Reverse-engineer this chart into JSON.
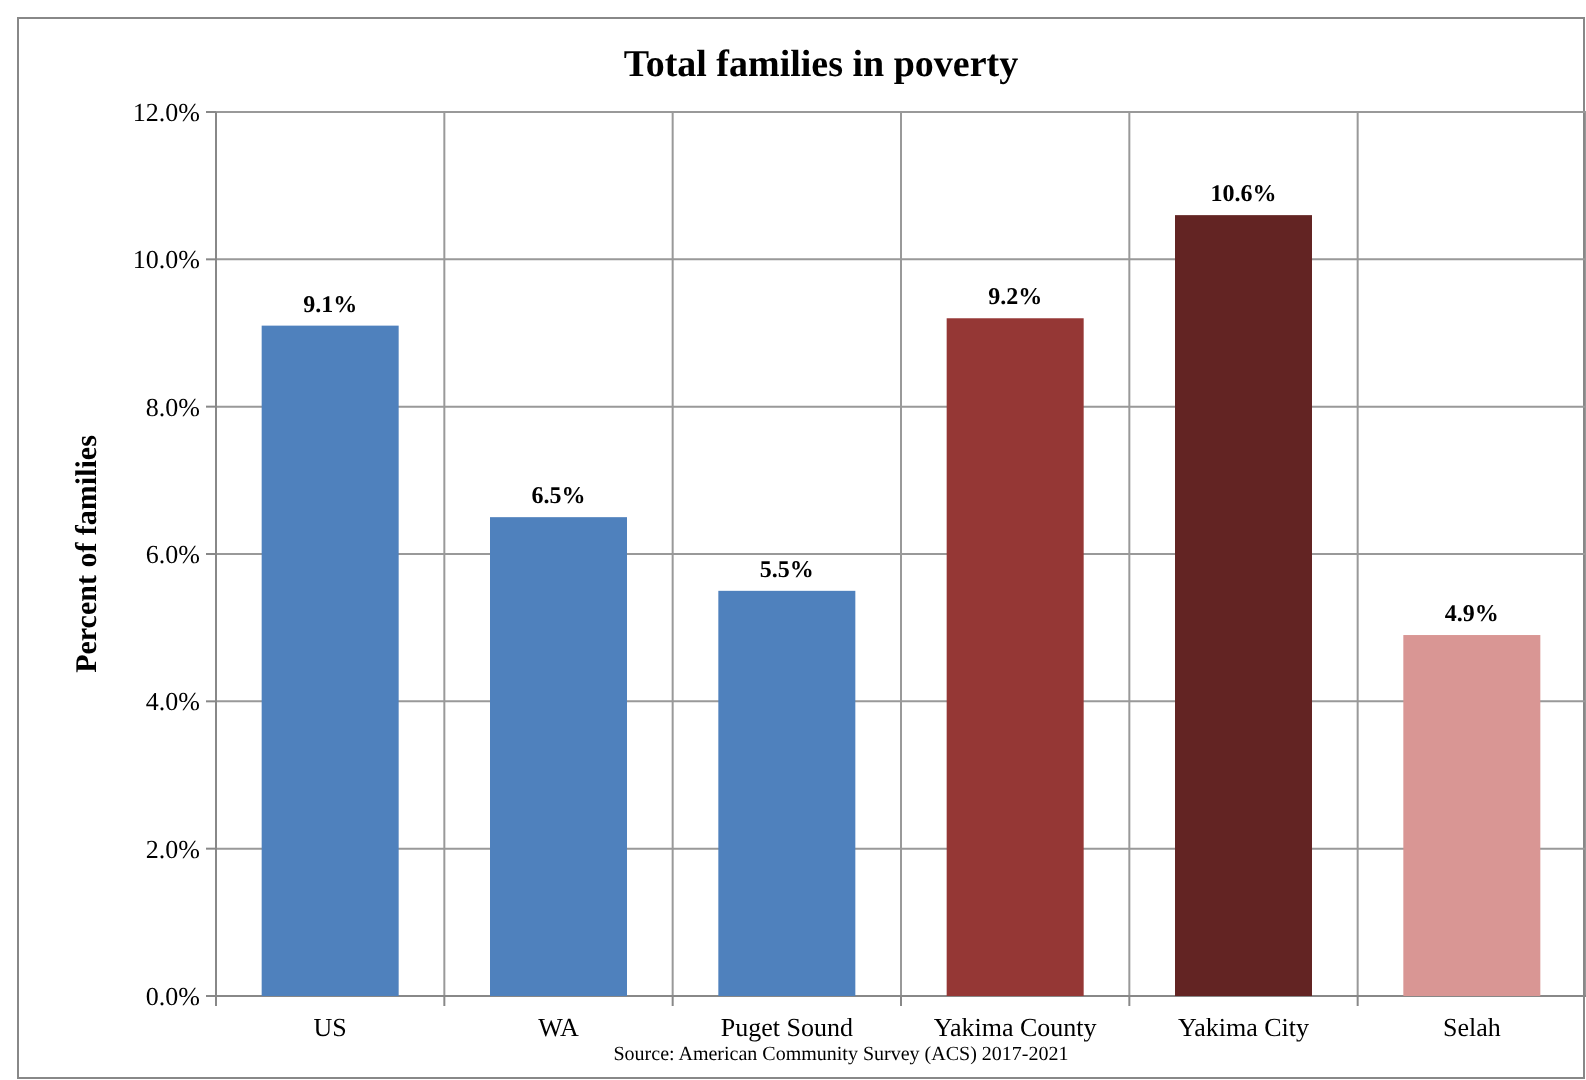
{
  "chart_data": {
    "type": "bar",
    "title": "Total families in poverty",
    "ylabel": "Percent of families",
    "categories": [
      "US",
      "WA",
      "Puget Sound",
      "Yakima County",
      "Yakima City",
      "Selah"
    ],
    "values": [
      9.1,
      6.5,
      5.5,
      9.2,
      10.6,
      4.9
    ],
    "colors": [
      "#4f81bd",
      "#4f81bd",
      "#4f81bd",
      "#953735",
      "#632423",
      "#d99694"
    ],
    "value_labels": [
      "9.1%",
      "6.5%",
      "5.5%",
      "9.2%",
      "10.6%",
      "4.9%"
    ],
    "ylim": [
      0,
      12
    ],
    "yticks": [
      {
        "value": 0,
        "label": "0.0%"
      },
      {
        "value": 2,
        "label": "2.0%"
      },
      {
        "value": 4,
        "label": "4.0%"
      },
      {
        "value": 6,
        "label": "6.0%"
      },
      {
        "value": 8,
        "label": "8.0%"
      },
      {
        "value": 10,
        "label": "10.0%"
      },
      {
        "value": 12,
        "label": "12.0%"
      }
    ],
    "grid": true,
    "annotations": [
      "Source: American Community Survey (ACS) 2017-2021"
    ]
  }
}
